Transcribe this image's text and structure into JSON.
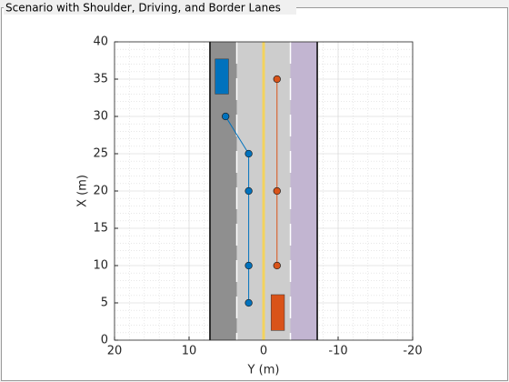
{
  "chart_data": {
    "type": "scenario",
    "title": "Scenario with Shoulder, Driving, and Border Lanes",
    "xlabel": "Y (m)",
    "ylabel": "X (m)",
    "xlim": [
      20,
      -20
    ],
    "xticks": [
      20,
      10,
      0,
      -10,
      -20
    ],
    "ylim": [
      0,
      40
    ],
    "yticks": [
      0,
      5,
      10,
      15,
      20,
      25,
      30,
      35,
      40
    ],
    "grid": true,
    "minor_grid": true,
    "lanes": [
      {
        "color": "#8f8f8f",
        "from": 7.2,
        "to": 3.6
      },
      {
        "color": "#cdcdcd",
        "from": 3.6,
        "to": 0
      },
      {
        "color": "#cdcdcd",
        "from": 0,
        "to": -3.6
      },
      {
        "color": "#c2b5d1",
        "from": -3.6,
        "to": -7.2
      }
    ],
    "markings": [
      {
        "at": 7.2,
        "style": "solid",
        "color": "#000000"
      },
      {
        "at": 3.6,
        "style": "dashed",
        "color": "#ffffff"
      },
      {
        "at": 0,
        "style": "solid",
        "color": "#f3d35e"
      },
      {
        "at": -3.6,
        "style": "dashed",
        "color": "#ffffff"
      },
      {
        "at": -7.2,
        "style": "solid",
        "color": "#000000"
      }
    ],
    "vehicles": [
      {
        "color": "#0072bd",
        "x": [
          6.5,
          4.7
        ],
        "y": [
          33,
          37.7
        ]
      },
      {
        "color": "#d95319",
        "x": [
          -1,
          -2.8
        ],
        "y": [
          1.3,
          6.1
        ]
      }
    ],
    "series": [
      {
        "color": "#0072bd",
        "x": [
          2,
          2,
          2,
          2,
          5.1
        ],
        "values": [
          5,
          10,
          20,
          25,
          30
        ]
      },
      {
        "color": "#d95319",
        "x": [
          -1.8,
          -1.8,
          -1.8
        ],
        "values": [
          10,
          20,
          35
        ]
      }
    ]
  }
}
